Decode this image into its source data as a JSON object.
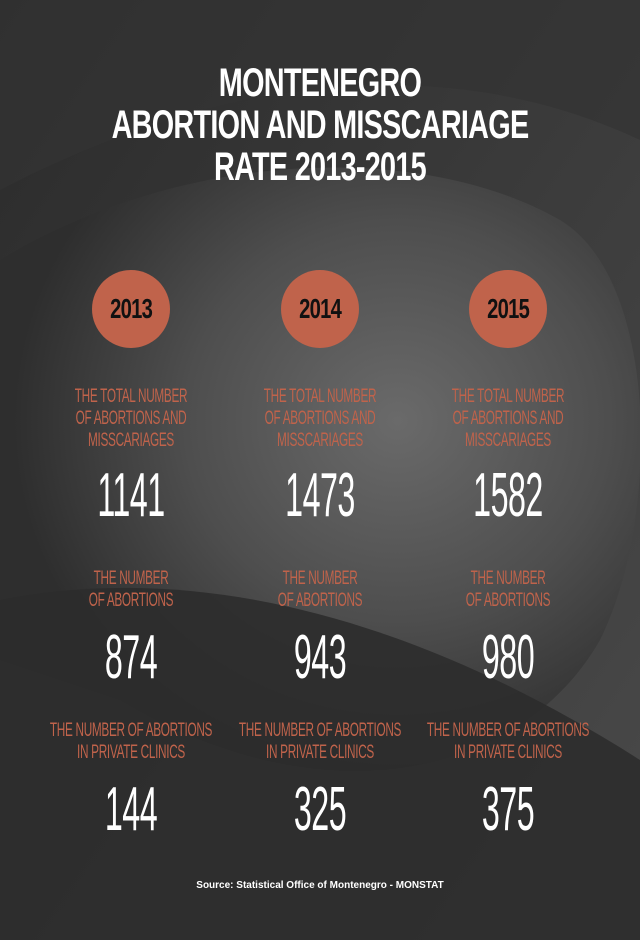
{
  "title": {
    "line1": "MONTENEGRO",
    "line2": "ABORTION AND MISSCARIAGE",
    "line3": "RATE 2013-2015"
  },
  "colors": {
    "accent": "#c0634b",
    "background": "#3a3a3a",
    "text": "#ffffff"
  },
  "years": [
    {
      "year": "2013",
      "total_label": "THE TOTAL NUMBER\nOF ABORTIONS AND\nMISSCARIAGES",
      "total_value": "1141",
      "abortions_label": "THE NUMBER\nOF ABORTIONS",
      "abortions_value": "874",
      "private_label": "THE NUMBER OF ABORTIONS\nIN PRIVATE CLINICS",
      "private_value": "144"
    },
    {
      "year": "2014",
      "total_label": "THE TOTAL NUMBER\nOF ABORTIONS AND\nMISSCARIAGES",
      "total_value": "1473",
      "abortions_label": "THE NUMBER\nOF ABORTIONS",
      "abortions_value": "943",
      "private_label": "THE NUMBER OF ABORTIONS\nIN PRIVATE CLINICS",
      "private_value": "325"
    },
    {
      "year": "2015",
      "total_label": "THE TOTAL NUMBER\nOF ABORTIONS AND\nMISSCARIAGES",
      "total_value": "1582",
      "abortions_label": "THE NUMBER\nOF ABORTIONS",
      "abortions_value": "980",
      "private_label": "THE NUMBER OF ABORTIONS\nIN PRIVATE CLINICS",
      "private_value": "375"
    }
  ],
  "source": "Source: Statistical Office of Montenegro - MONSTAT"
}
